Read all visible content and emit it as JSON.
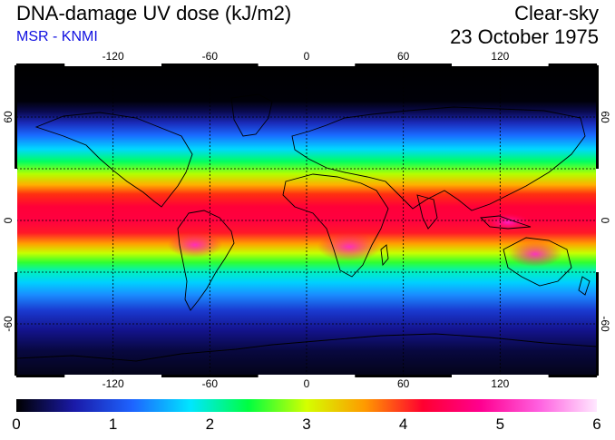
{
  "header": {
    "title": "DNA-damage UV dose (kJ/m2)",
    "subtitle": "MSR - KNMI",
    "sky_condition": "Clear-sky",
    "date": "23 October 1975"
  },
  "map": {
    "lon_range": [
      -180,
      180
    ],
    "lat_range": [
      -90,
      90
    ],
    "gridline_style": "dashed",
    "lon_ticks": [
      {
        "value": -120,
        "label": "-120"
      },
      {
        "value": -60,
        "label": "-60"
      },
      {
        "value": 0,
        "label": "0"
      },
      {
        "value": 60,
        "label": "60"
      },
      {
        "value": 120,
        "label": "120"
      }
    ],
    "lat_ticks": [
      {
        "value": 60,
        "label": "60",
        "right_label": "60"
      },
      {
        "value": 0,
        "label": "0",
        "right_label": "0"
      },
      {
        "value": -60,
        "label": "-60",
        "right_label": "-60"
      }
    ]
  },
  "colorbar": {
    "min": 0,
    "max": 6,
    "labels": [
      "0",
      "1",
      "2",
      "3",
      "4",
      "5",
      "6"
    ],
    "colors": [
      "#000000",
      "#1a1aa8",
      "#1e64ff",
      "#00e6ff",
      "#00ff40",
      "#d4ff00",
      "#ff9a00",
      "#ff0030",
      "#ff0090",
      "#ff60e0",
      "#ffe8ff"
    ]
  }
}
